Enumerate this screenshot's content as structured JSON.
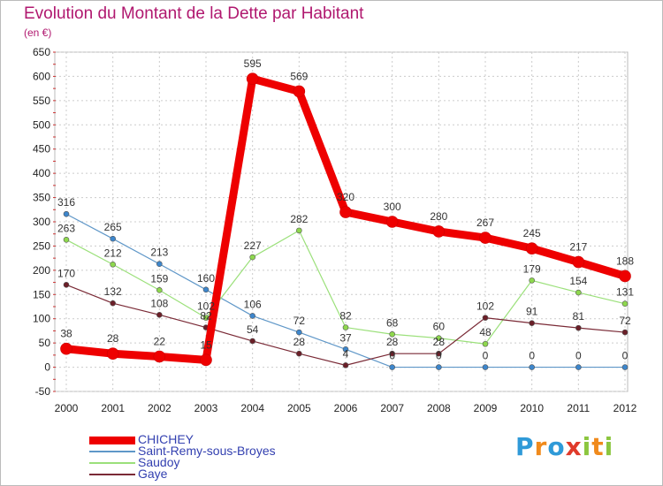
{
  "title": "Evolution du Montant de la Dette par Habitant",
  "unit_label": "(en €)",
  "brand": {
    "letters": [
      "P",
      "r",
      "o",
      "x",
      "i",
      "t",
      "i"
    ],
    "colors": [
      "#2f9ad8",
      "#f08a1c",
      "#2f9ad8",
      "#e03a2a",
      "#8cc63f",
      "#f08a1c",
      "#8cc63f"
    ]
  },
  "chart_data": {
    "type": "line",
    "x": [
      "2000",
      "2001",
      "2002",
      "2003",
      "2004",
      "2005",
      "2006",
      "2007",
      "2008",
      "2009",
      "2010",
      "2011",
      "2012"
    ],
    "ylim": [
      -50,
      650
    ],
    "yticks": [
      -50,
      0,
      50,
      100,
      150,
      200,
      250,
      300,
      350,
      400,
      450,
      500,
      550,
      600,
      650
    ],
    "grid": true,
    "legend_position": "bottom-left",
    "series": [
      {
        "name": "CHICHEY",
        "color": "#ee0000",
        "width": 9,
        "point_color": "#ee0000",
        "values": [
          38,
          28,
          22,
          15,
          595,
          569,
          320,
          300,
          280,
          267,
          245,
          217,
          188
        ]
      },
      {
        "name": "Saint-Remy-sous-Broyes",
        "color": "#5f97c8",
        "width": 1.2,
        "point_color": "#3d86cc",
        "values": [
          316,
          265,
          213,
          160,
          106,
          72,
          37,
          0,
          0,
          0,
          0,
          0,
          0
        ]
      },
      {
        "name": "Saudoy",
        "color": "#9be07a",
        "width": 1.2,
        "point_color": "#8ed84d",
        "values": [
          263,
          212,
          159,
          102,
          227,
          282,
          82,
          68,
          60,
          48,
          179,
          154,
          131
        ]
      },
      {
        "name": "Gaye",
        "color": "#7a2a36",
        "width": 1.2,
        "point_color": "#6b1f28",
        "values": [
          170,
          132,
          108,
          82,
          54,
          28,
          4,
          28,
          28,
          102,
          91,
          81,
          72
        ]
      }
    ],
    "data_labels": [
      {
        "series": 0,
        "labels": [
          "38",
          "28",
          "22",
          "15",
          "595",
          "569",
          "320",
          "300",
          "280",
          "267",
          "245",
          "217",
          "188"
        ]
      },
      {
        "series": 1,
        "labels": [
          "316",
          "265",
          "213",
          "160",
          "106",
          "72",
          "37",
          "0",
          "0",
          "0",
          "0",
          "0",
          "0"
        ]
      },
      {
        "series": 2,
        "labels": [
          "263",
          "212",
          "159",
          "102",
          "227",
          "282",
          "82",
          "68",
          "60",
          "48",
          "179",
          "154",
          "131"
        ]
      },
      {
        "series": 3,
        "labels": [
          "170",
          "132",
          "108",
          "82",
          "54",
          "28",
          "4",
          "28",
          "28",
          "102",
          "91",
          "81",
          "72"
        ]
      }
    ]
  }
}
